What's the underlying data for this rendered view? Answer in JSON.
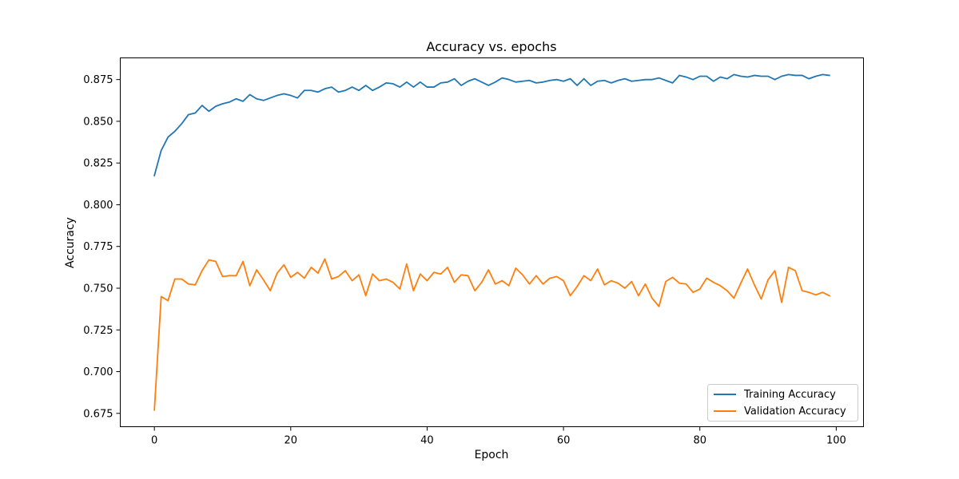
{
  "chart_data": {
    "type": "line",
    "title": "Accuracy vs. epochs",
    "xlabel": "Epoch",
    "ylabel": "Accuracy",
    "xlim": [
      -5,
      104
    ],
    "ylim": [
      0.667,
      0.888
    ],
    "xticks": [
      0,
      20,
      40,
      60,
      80,
      100
    ],
    "xtick_labels": [
      "0",
      "20",
      "40",
      "60",
      "80",
      "100"
    ],
    "yticks": [
      0.675,
      0.7,
      0.725,
      0.75,
      0.775,
      0.8,
      0.825,
      0.85,
      0.875
    ],
    "ytick_labels": [
      "0.675",
      "0.700",
      "0.725",
      "0.750",
      "0.775",
      "0.800",
      "0.825",
      "0.850",
      "0.875"
    ],
    "grid": false,
    "legend_position": "lower-right",
    "x": [
      0,
      1,
      2,
      3,
      4,
      5,
      6,
      7,
      8,
      9,
      10,
      11,
      12,
      13,
      14,
      15,
      16,
      17,
      18,
      19,
      20,
      21,
      22,
      23,
      24,
      25,
      26,
      27,
      28,
      29,
      30,
      31,
      32,
      33,
      34,
      35,
      36,
      37,
      38,
      39,
      40,
      41,
      42,
      43,
      44,
      45,
      46,
      47,
      48,
      49,
      50,
      51,
      52,
      53,
      54,
      55,
      56,
      57,
      58,
      59,
      60,
      61,
      62,
      63,
      64,
      65,
      66,
      67,
      68,
      69,
      70,
      71,
      72,
      73,
      74,
      75,
      76,
      77,
      78,
      79,
      80,
      81,
      82,
      83,
      84,
      85,
      86,
      87,
      88,
      89,
      90,
      91,
      92,
      93,
      94,
      95,
      96,
      97,
      98,
      99
    ],
    "series": [
      {
        "name": "Training Accuracy",
        "color": "#1f77b4",
        "values": [
          0.8175,
          0.8325,
          0.8405,
          0.844,
          0.8485,
          0.854,
          0.855,
          0.8595,
          0.856,
          0.859,
          0.8605,
          0.8615,
          0.8635,
          0.862,
          0.866,
          0.8635,
          0.8625,
          0.864,
          0.8655,
          0.8665,
          0.8655,
          0.864,
          0.8685,
          0.8685,
          0.8675,
          0.8695,
          0.8705,
          0.8675,
          0.8685,
          0.8705,
          0.8685,
          0.8715,
          0.8685,
          0.8705,
          0.873,
          0.8725,
          0.8705,
          0.8735,
          0.8705,
          0.8735,
          0.8705,
          0.8705,
          0.873,
          0.8735,
          0.8755,
          0.8715,
          0.874,
          0.8755,
          0.8735,
          0.8715,
          0.8735,
          0.876,
          0.875,
          0.8735,
          0.874,
          0.8745,
          0.873,
          0.8735,
          0.8745,
          0.875,
          0.874,
          0.8755,
          0.8715,
          0.8755,
          0.8715,
          0.874,
          0.8745,
          0.873,
          0.8745,
          0.8755,
          0.874,
          0.8745,
          0.875,
          0.875,
          0.876,
          0.8745,
          0.873,
          0.8775,
          0.8765,
          0.875,
          0.877,
          0.877,
          0.874,
          0.8765,
          0.8755,
          0.878,
          0.877,
          0.8765,
          0.8775,
          0.877,
          0.877,
          0.875,
          0.877,
          0.878,
          0.8775,
          0.8775,
          0.8755,
          0.877,
          0.878,
          0.8775
        ]
      },
      {
        "name": "Validation Accuracy",
        "color": "#ff7f0e",
        "values": [
          0.677,
          0.745,
          0.7425,
          0.7555,
          0.7555,
          0.7525,
          0.752,
          0.7605,
          0.767,
          0.766,
          0.757,
          0.7575,
          0.7575,
          0.766,
          0.7515,
          0.761,
          0.755,
          0.7485,
          0.759,
          0.764,
          0.7565,
          0.7595,
          0.756,
          0.7625,
          0.759,
          0.7675,
          0.7555,
          0.757,
          0.7605,
          0.7545,
          0.758,
          0.7455,
          0.7585,
          0.7545,
          0.7555,
          0.7535,
          0.7495,
          0.7645,
          0.7485,
          0.7585,
          0.7545,
          0.7595,
          0.7585,
          0.7625,
          0.7535,
          0.758,
          0.7575,
          0.7485,
          0.7535,
          0.761,
          0.7525,
          0.7545,
          0.7515,
          0.762,
          0.758,
          0.7525,
          0.7575,
          0.7525,
          0.756,
          0.757,
          0.7545,
          0.7455,
          0.751,
          0.7575,
          0.7545,
          0.7615,
          0.752,
          0.7545,
          0.753,
          0.75,
          0.754,
          0.7455,
          0.7525,
          0.744,
          0.739,
          0.754,
          0.7565,
          0.753,
          0.7525,
          0.7475,
          0.7495,
          0.756,
          0.7535,
          0.7515,
          0.7485,
          0.744,
          0.753,
          0.7615,
          0.752,
          0.7435,
          0.755,
          0.7605,
          0.7415,
          0.7625,
          0.7605,
          0.7485,
          0.7475,
          0.746,
          0.7475,
          0.7455
        ]
      }
    ]
  }
}
